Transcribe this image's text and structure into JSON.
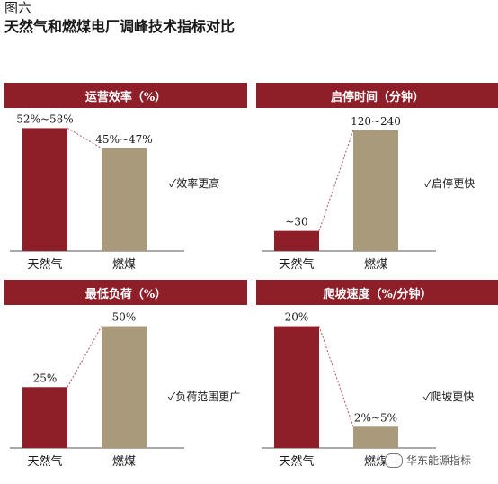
{
  "figure_label": "图六",
  "figure_title": "天然气和燃煤电厂调峰技术指标对比",
  "colors": {
    "header": "#8e1e28",
    "gas": "#8e1e28",
    "coal": "#a89a7a",
    "connector": "#b25060"
  },
  "watermark": "华东能源指标",
  "chart_data": [
    {
      "type": "bar",
      "title": "运营效率（%）",
      "categories": [
        "天然气",
        "燃煤"
      ],
      "values": [
        55,
        46
      ],
      "data_labels": [
        "52%~58%",
        "45%~47%"
      ],
      "ylim": [
        0,
        60
      ],
      "note": "✓效率更高"
    },
    {
      "type": "bar",
      "title": "启停时间（分钟）",
      "categories": [
        "天然气",
        "燃煤"
      ],
      "values": [
        30,
        180
      ],
      "data_labels": [
        "~30",
        "120~240"
      ],
      "ylim": [
        0,
        200
      ],
      "note": "✓启停更快"
    },
    {
      "type": "bar",
      "title": "最低负荷（%）",
      "categories": [
        "天然气",
        "燃煤"
      ],
      "values": [
        25,
        50
      ],
      "data_labels": [
        "25%",
        "50%"
      ],
      "ylim": [
        0,
        55
      ],
      "note": "✓负荷范围更广"
    },
    {
      "type": "bar",
      "title": "爬坡速度（%/分钟）",
      "categories": [
        "天然气",
        "燃煤"
      ],
      "values": [
        20,
        3.5
      ],
      "data_labels": [
        "20%",
        "2%~5%"
      ],
      "ylim": [
        0,
        22
      ],
      "note": "✓爬坡更快"
    }
  ]
}
